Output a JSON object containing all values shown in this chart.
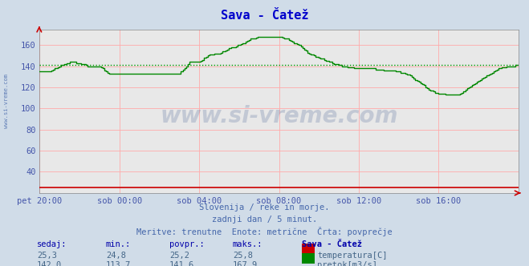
{
  "title": "Sava - Čatež",
  "title_color": "#0000cc",
  "bg_color": "#d0dce8",
  "plot_bg_color": "#e8e8e8",
  "grid_color": "#ffaaaa",
  "xlabel_color": "#4455aa",
  "ylabel_color": "#4455aa",
  "ylim": [
    20,
    175
  ],
  "yticks": [
    40,
    60,
    80,
    100,
    120,
    140,
    160
  ],
  "xtick_labels": [
    "pet 20:00",
    "sob 00:00",
    "sob 04:00",
    "sob 08:00",
    "sob 12:00",
    "sob 16:00"
  ],
  "subtitle_lines": [
    "Slovenija / reke in morje.",
    "zadnji dan / 5 minut.",
    "Meritve: trenutne  Enote: metrične  Črta: povprečje"
  ],
  "footer_header": [
    "sedaj:",
    "min.:",
    "povpr.:",
    "maks.:",
    "Sava - Čatež"
  ],
  "footer_row1": [
    "25,3",
    "24,8",
    "25,2",
    "25,8",
    "temperatura[C]"
  ],
  "footer_row2": [
    "142,0",
    "113,7",
    "141,6",
    "167,9",
    "pretok[m3/s]"
  ],
  "temp_color": "#cc0000",
  "flow_color": "#008800",
  "avg_line_color": "#009900",
  "avg_value": 141.6,
  "watermark": "www.si-vreme.com",
  "watermark_color": "#1a3a7a",
  "sidebar_text": "www.si-vreme.com",
  "sidebar_color": "#4466aa",
  "n_points": 289,
  "temp_avg": 25.2,
  "flow_avg": 141.6,
  "flow_min": 113.7,
  "flow_max": 167.9
}
